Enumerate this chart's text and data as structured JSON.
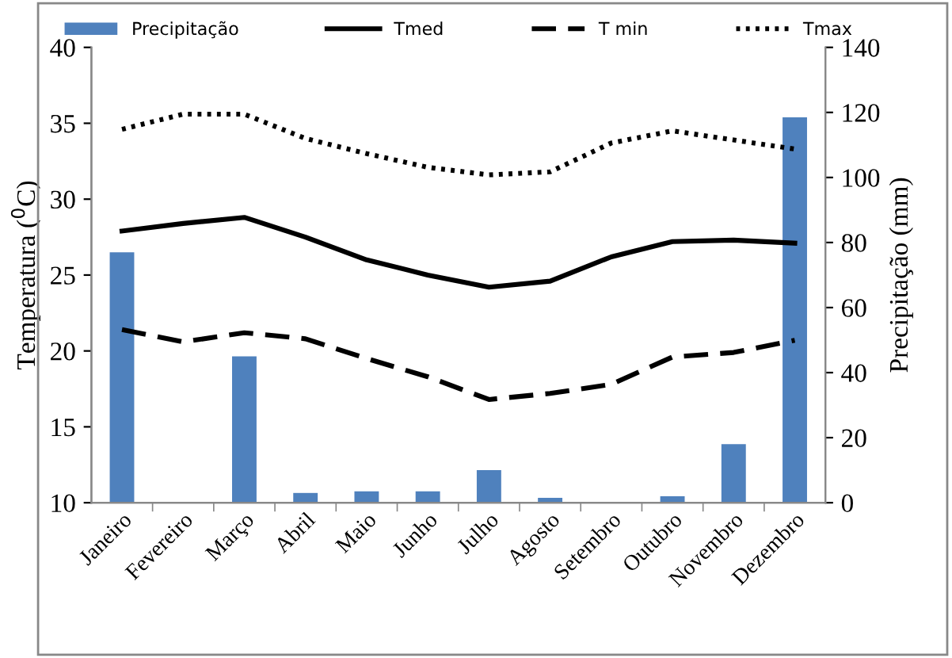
{
  "chart_data": {
    "type": "bar",
    "ylabel": "Temperatura ($^{0}$C)",
    "y2label": "Precipitação (mm)",
    "categories": [
      "Janeiro",
      "Fevereiro",
      "Março",
      "Abril",
      "Maio",
      "Junho",
      "Julho",
      "Agosto",
      "Setembro",
      "Outubro",
      "Novembro",
      "Dezembro"
    ],
    "series": [
      {
        "name": "Precipitação",
        "axis": "y2",
        "color": "#4f81bd",
        "values": [
          77,
          0,
          45,
          3,
          3.5,
          3.5,
          10,
          1.5,
          0,
          2,
          18,
          118.5
        ]
      },
      {
        "name": "Tmed",
        "type": "line",
        "color": "#000000",
        "line_style": "solid",
        "values": [
          27.9,
          28.4,
          28.8,
          27.5,
          26.0,
          25.0,
          24.2,
          24.6,
          26.2,
          27.2,
          27.3,
          27.1
        ]
      },
      {
        "name": "T min",
        "type": "line",
        "color": "#000000",
        "line_style": "dashed",
        "values": [
          21.4,
          20.6,
          21.2,
          20.8,
          19.5,
          18.3,
          16.8,
          17.2,
          17.8,
          19.6,
          19.9,
          20.7
        ]
      },
      {
        "name": "Tmax",
        "type": "line",
        "color": "#000000",
        "line_style": "dotted",
        "values": [
          34.6,
          35.6,
          35.6,
          34.0,
          33.0,
          32.1,
          31.6,
          31.8,
          33.7,
          34.5,
          33.9,
          33.3
        ]
      }
    ],
    "ylim": [
      10,
      40
    ],
    "yticks": [
      10,
      15,
      20,
      25,
      30,
      35,
      40
    ],
    "y2lim": [
      0,
      140
    ],
    "y2ticks": [
      0,
      20,
      40,
      60,
      80,
      100,
      120,
      140
    ],
    "grid": false,
    "legend": "top",
    "marker": "none"
  }
}
